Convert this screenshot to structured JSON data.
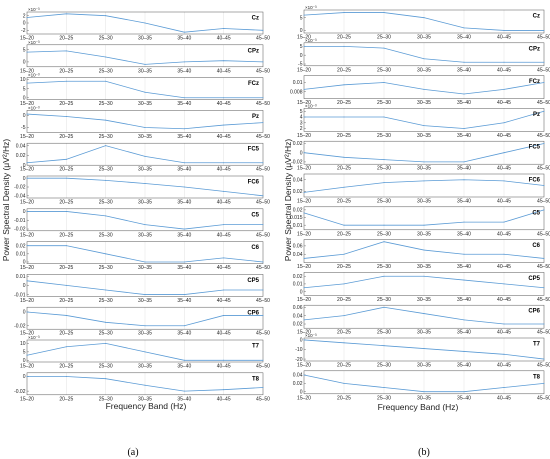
{
  "panels": [
    {
      "label": "(a)",
      "xlabel": "Frequency Band (Hz)",
      "ylabel": "Power Spectral Density (μV²/Hz)"
    },
    {
      "label": "(b)",
      "xlabel": "Frequency Band (Hz)",
      "ylabel": "Power Spectral Density (μV²/Hz)"
    }
  ],
  "colors": {
    "line": "#5b9bd5",
    "axis": "#555555",
    "grid": "#cccccc"
  },
  "chart_data": [
    {
      "type": "line",
      "panel": "(a)",
      "categories": [
        "15–20",
        "20–25",
        "25–30",
        "30–35",
        "35–40",
        "40–45",
        "45–50"
      ],
      "xlabel": "Frequency Band (Hz)",
      "ylabel": "Power Spectral Density (μV²/Hz)",
      "subplots": [
        {
          "channel": "Cz",
          "exponent": "×10⁻³",
          "yticks": [
            "2",
            "0",
            "-2"
          ],
          "ylim": [
            -3,
            3
          ],
          "values": [
            1.5,
            2.5,
            2.0,
            0.0,
            -2.5,
            -1.5,
            -2.0
          ]
        },
        {
          "channel": "CPz",
          "exponent": "×10⁻³",
          "yticks": [
            "5",
            "0"
          ],
          "ylim": [
            -2,
            7
          ],
          "values": [
            4.0,
            4.5,
            2.0,
            -1.0,
            0.0,
            0.5,
            0.0
          ]
        },
        {
          "channel": "FCz",
          "exponent": "×10⁻³",
          "yticks": [
            "10",
            "5",
            "0"
          ],
          "ylim": [
            -1,
            11
          ],
          "values": [
            8.0,
            9.0,
            9.0,
            3.0,
            0.0,
            0.0,
            0.0
          ]
        },
        {
          "channel": "Pz",
          "exponent": "×10⁻³",
          "yticks": [
            "0",
            "-5"
          ],
          "ylim": [
            -7,
            2
          ],
          "values": [
            0.5,
            -0.5,
            -2.0,
            -5.0,
            -5.5,
            -4.0,
            -3.0
          ]
        },
        {
          "channel": "FC5",
          "exponent": "",
          "yticks": [
            "0.04",
            "0.02",
            "0"
          ],
          "ylim": [
            0,
            0.045
          ],
          "values": [
            0.005,
            0.012,
            0.04,
            0.018,
            0.005,
            0.005,
            0.005
          ]
        },
        {
          "channel": "FC6",
          "exponent": "",
          "yticks": [
            "0",
            "-0.02",
            "-0.04"
          ],
          "ylim": [
            -0.045,
            0.005
          ],
          "values": [
            0.0,
            0.0,
            -0.005,
            -0.012,
            -0.02,
            -0.03,
            -0.04
          ]
        },
        {
          "channel": "C5",
          "exponent": "",
          "yticks": [
            "0",
            "-0.01",
            "-0.02"
          ],
          "ylim": [
            -0.022,
            0.003
          ],
          "values": [
            0.0,
            0.0,
            -0.005,
            -0.015,
            -0.02,
            -0.015,
            -0.015
          ]
        },
        {
          "channel": "C6",
          "exponent": "",
          "yticks": [
            "0.02",
            "0.01",
            "0"
          ],
          "ylim": [
            -0.002,
            0.025
          ],
          "values": [
            0.02,
            0.02,
            0.01,
            0.0,
            0.0,
            0.005,
            0.0
          ]
        },
        {
          "channel": "CP5",
          "exponent": "",
          "yticks": [
            "0.01",
            "0",
            "-0.01"
          ],
          "ylim": [
            -0.012,
            0.012
          ],
          "values": [
            0.005,
            0.0,
            -0.005,
            -0.01,
            -0.01,
            -0.005,
            -0.005
          ]
        },
        {
          "channel": "CP6",
          "exponent": "",
          "yticks": [
            "0",
            "-0.02"
          ],
          "ylim": [
            -0.025,
            0.007
          ],
          "values": [
            0.0,
            -0.005,
            -0.015,
            -0.02,
            -0.02,
            -0.005,
            -0.005
          ]
        },
        {
          "channel": "T7",
          "exponent": "×10⁻³",
          "yticks": [
            "10",
            "5",
            "0"
          ],
          "ylim": [
            -1,
            12
          ],
          "values": [
            3.0,
            8.0,
            10.0,
            5.0,
            0.0,
            0.0,
            0.0
          ]
        },
        {
          "channel": "T8",
          "exponent": "",
          "yticks": [
            "0",
            "-0.02"
          ],
          "ylim": [
            -0.025,
            0.005
          ],
          "values": [
            0.0,
            0.0,
            -0.003,
            -0.012,
            -0.02,
            -0.018,
            -0.015
          ]
        }
      ]
    },
    {
      "type": "line",
      "panel": "(b)",
      "categories": [
        "15–20",
        "20–25",
        "25–30",
        "30–35",
        "35–40",
        "40–45",
        "45–50"
      ],
      "xlabel": "Frequency Band (Hz)",
      "ylabel": "Power Spectral Density (μV²/Hz)",
      "subplots": [
        {
          "channel": "Cz",
          "exponent": "×10⁻³",
          "yticks": [
            "5",
            "0"
          ],
          "ylim": [
            -1,
            8
          ],
          "values": [
            6.0,
            7.0,
            7.0,
            5.0,
            1.0,
            0.0,
            0.0
          ]
        },
        {
          "channel": "CPz",
          "exponent": "×10⁻³",
          "yticks": [
            "5",
            "0",
            "-5"
          ],
          "ylim": [
            -6,
            7
          ],
          "values": [
            5.0,
            5.0,
            4.0,
            -2.0,
            -4.0,
            -4.0,
            -4.0
          ]
        },
        {
          "channel": "FCz",
          "exponent": "",
          "yticks": [
            "0.01",
            "0.008"
          ],
          "ylim": [
            0.0065,
            0.0115
          ],
          "values": [
            0.0085,
            0.0095,
            0.01,
            0.0085,
            0.0075,
            0.0085,
            0.01
          ]
        },
        {
          "channel": "Pz",
          "exponent": "×10⁻³",
          "yticks": [
            "5",
            "4",
            "3",
            "2"
          ],
          "ylim": [
            1.5,
            5.5
          ],
          "values": [
            4.0,
            4.0,
            4.0,
            2.5,
            2.0,
            3.0,
            5.0
          ]
        },
        {
          "channel": "FC5",
          "exponent": "",
          "yticks": [
            "0.02",
            "0",
            "-0.02"
          ],
          "ylim": [
            -0.025,
            0.025
          ],
          "values": [
            0.0,
            -0.01,
            -0.015,
            -0.02,
            -0.02,
            0.0,
            0.02
          ]
        },
        {
          "channel": "FC6",
          "exponent": "",
          "yticks": [
            "0.04",
            "0.02"
          ],
          "ylim": [
            0.01,
            0.05
          ],
          "values": [
            0.018,
            0.027,
            0.035,
            0.038,
            0.04,
            0.038,
            0.03
          ]
        },
        {
          "channel": "C5",
          "exponent": "",
          "yticks": [
            "0.02",
            "0.015",
            "0.01"
          ],
          "ylim": [
            0.007,
            0.022
          ],
          "values": [
            0.018,
            0.01,
            0.01,
            0.01,
            0.012,
            0.012,
            0.02
          ]
        },
        {
          "channel": "C6",
          "exponent": "",
          "yticks": [
            "0.06",
            "0.04"
          ],
          "ylim": [
            0.02,
            0.075
          ],
          "values": [
            0.03,
            0.04,
            0.07,
            0.05,
            0.04,
            0.04,
            0.03
          ]
        },
        {
          "channel": "CP5",
          "exponent": "",
          "yticks": [
            "0.02",
            "0.01",
            "0"
          ],
          "ylim": [
            -0.005,
            0.025
          ],
          "values": [
            0.005,
            0.01,
            0.02,
            0.02,
            0.015,
            0.01,
            0.005
          ]
        },
        {
          "channel": "CP6",
          "exponent": "",
          "yticks": [
            "0.06",
            "0.04",
            "0.02"
          ],
          "ylim": [
            0.01,
            0.065
          ],
          "values": [
            0.03,
            0.04,
            0.06,
            0.045,
            0.03,
            0.02,
            0.02
          ]
        },
        {
          "channel": "T7",
          "exponent": "×10⁻³",
          "yticks": [
            "0",
            "-10",
            "-20"
          ],
          "ylim": [
            -22,
            2
          ],
          "values": [
            0.0,
            -3.0,
            -6.0,
            -9.0,
            -12.0,
            -15.0,
            -20.0
          ]
        },
        {
          "channel": "T8",
          "exponent": "",
          "yticks": [
            "0.04",
            "0.02",
            "0"
          ],
          "ylim": [
            -0.005,
            0.05
          ],
          "values": [
            0.04,
            0.02,
            0.01,
            0.0,
            0.0,
            0.01,
            0.02
          ]
        }
      ]
    }
  ]
}
